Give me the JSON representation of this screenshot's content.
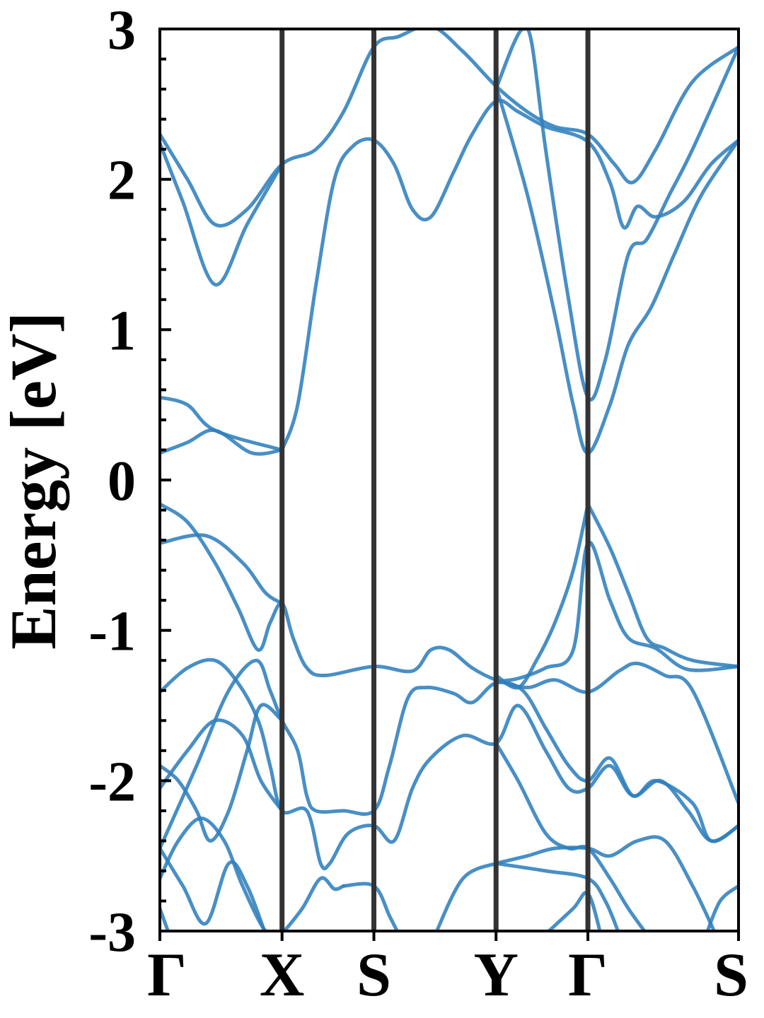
{
  "chart_data": {
    "type": "line",
    "ylabel": "Energy [eV]",
    "ylim": [
      -3,
      3
    ],
    "yticks": [
      {
        "value": 3,
        "label": "3"
      },
      {
        "value": 2,
        "label": "2"
      },
      {
        "value": 1,
        "label": "1"
      },
      {
        "value": 0,
        "label": "0"
      },
      {
        "value": -1,
        "label": "-1"
      },
      {
        "value": -2,
        "label": "-2"
      },
      {
        "value": -3,
        "label": "-3"
      }
    ],
    "kpath": {
      "range": [
        0,
        6.3
      ],
      "points": [
        {
          "label": "Γ",
          "k": 0
        },
        {
          "label": "X",
          "k": 1.33
        },
        {
          "label": "S",
          "k": 2.33
        },
        {
          "label": "Y",
          "k": 3.66
        },
        {
          "label": "Γ",
          "k": 4.66
        },
        {
          "label": "S",
          "k": 6.3
        }
      ]
    },
    "grid": false,
    "band_color": "#2f7fbd",
    "kline_color": "#333333",
    "series": [
      {
        "points": [
          [
            0,
            2.3
          ],
          [
            0.3,
            2.0
          ],
          [
            0.6,
            1.7
          ],
          [
            0.95,
            1.8
          ],
          [
            1.33,
            2.1
          ],
          [
            1.7,
            2.2
          ],
          [
            2.0,
            2.45
          ],
          [
            2.33,
            2.88
          ],
          [
            2.6,
            2.95
          ],
          [
            2.95,
            3.02
          ],
          [
            3.3,
            2.85
          ],
          [
            3.66,
            2.62
          ],
          [
            4.0,
            2.45
          ],
          [
            4.3,
            2.35
          ],
          [
            4.66,
            2.3
          ],
          [
            4.95,
            2.1
          ],
          [
            5.15,
            1.98
          ],
          [
            5.4,
            2.2
          ],
          [
            5.8,
            2.65
          ],
          [
            6.3,
            2.88
          ]
        ]
      },
      {
        "points": [
          [
            0,
            2.24
          ],
          [
            0.25,
            1.85
          ],
          [
            0.6,
            1.3
          ],
          [
            0.95,
            1.7
          ],
          [
            1.33,
            2.1
          ]
        ]
      },
      {
        "points": [
          [
            1.33,
            0.2
          ],
          [
            1.5,
            0.5
          ],
          [
            1.7,
            1.3
          ],
          [
            1.9,
            2.0
          ],
          [
            2.1,
            2.22
          ],
          [
            2.33,
            2.26
          ],
          [
            2.55,
            2.1
          ],
          [
            2.75,
            1.8
          ],
          [
            2.95,
            1.75
          ],
          [
            3.2,
            2.05
          ],
          [
            3.4,
            2.3
          ],
          [
            3.66,
            2.52
          ],
          [
            3.9,
            2.45
          ],
          [
            4.2,
            2.35
          ],
          [
            4.66,
            2.25
          ],
          [
            4.9,
            1.98
          ],
          [
            5.05,
            1.68
          ],
          [
            5.2,
            1.82
          ],
          [
            5.4,
            1.75
          ],
          [
            5.7,
            1.85
          ],
          [
            6.0,
            2.1
          ],
          [
            6.3,
            2.26
          ]
        ]
      },
      {
        "points": [
          [
            3.66,
            2.6
          ],
          [
            3.85,
            2.9
          ],
          [
            3.96,
            3.0
          ],
          [
            4.05,
            2.9
          ],
          [
            4.2,
            2.2
          ],
          [
            4.45,
            1.2
          ],
          [
            4.66,
            0.55
          ],
          [
            4.85,
            0.8
          ],
          [
            5.1,
            1.5
          ],
          [
            5.3,
            1.6
          ],
          [
            5.55,
            1.9
          ],
          [
            5.8,
            2.2
          ],
          [
            6.3,
            2.88
          ]
        ]
      },
      {
        "points": [
          [
            3.66,
            2.62
          ],
          [
            4.0,
            1.9
          ],
          [
            4.3,
            1.1
          ],
          [
            4.5,
            0.5
          ],
          [
            4.66,
            0.18
          ],
          [
            4.9,
            0.5
          ],
          [
            5.1,
            0.9
          ],
          [
            5.35,
            1.15
          ],
          [
            5.6,
            1.5
          ],
          [
            5.9,
            1.9
          ],
          [
            6.3,
            2.26
          ]
        ]
      },
      {
        "points": [
          [
            0,
            0.55
          ],
          [
            0.3,
            0.5
          ],
          [
            0.6,
            0.33
          ],
          [
            1.33,
            0.2
          ]
        ]
      },
      {
        "points": [
          [
            0,
            0.18
          ],
          [
            0.3,
            0.25
          ],
          [
            0.6,
            0.33
          ],
          [
            1.0,
            0.18
          ],
          [
            1.33,
            0.2
          ]
        ]
      },
      {
        "points": [
          [
            0,
            -0.16
          ],
          [
            0.3,
            -0.28
          ],
          [
            0.6,
            -0.55
          ],
          [
            0.85,
            -0.85
          ],
          [
            1.07,
            -1.13
          ],
          [
            1.2,
            -0.95
          ],
          [
            1.33,
            -0.82
          ],
          [
            1.45,
            -1.05
          ],
          [
            1.6,
            -1.25
          ],
          [
            1.8,
            -1.3
          ],
          [
            2.33,
            -1.24
          ],
          [
            2.75,
            -1.27
          ],
          [
            2.95,
            -1.13
          ],
          [
            3.15,
            -1.13
          ],
          [
            3.4,
            -1.25
          ],
          [
            3.66,
            -1.33
          ],
          [
            4.0,
            -1.38
          ],
          [
            4.3,
            -1.33
          ],
          [
            4.66,
            -1.41
          ],
          [
            5.0,
            -1.27
          ],
          [
            5.2,
            -1.22
          ],
          [
            5.5,
            -1.3
          ],
          [
            5.8,
            -1.4
          ],
          [
            6.3,
            -2.15
          ]
        ]
      },
      {
        "points": [
          [
            0,
            -0.42
          ],
          [
            0.5,
            -0.37
          ],
          [
            0.9,
            -0.55
          ],
          [
            1.15,
            -0.75
          ],
          [
            1.33,
            -0.82
          ]
        ]
      },
      {
        "points": [
          [
            4.66,
            -0.16
          ],
          [
            4.9,
            -0.45
          ],
          [
            5.1,
            -0.75
          ],
          [
            5.3,
            -1.05
          ],
          [
            5.5,
            -1.12
          ],
          [
            5.8,
            -1.2
          ],
          [
            6.3,
            -1.24
          ]
        ]
      },
      {
        "points": [
          [
            3.66,
            -1.34
          ],
          [
            3.9,
            -1.32
          ],
          [
            4.2,
            -1.25
          ],
          [
            4.5,
            -1.13
          ],
          [
            4.66,
            -0.42
          ],
          [
            4.9,
            -0.8
          ],
          [
            5.1,
            -1.05
          ],
          [
            5.4,
            -1.12
          ],
          [
            5.75,
            -1.26
          ],
          [
            6.3,
            -1.24
          ]
        ]
      },
      {
        "points": [
          [
            3.66,
            -1.3
          ],
          [
            3.9,
            -1.38
          ],
          [
            4.1,
            -1.2
          ],
          [
            4.3,
            -0.95
          ],
          [
            4.5,
            -0.6
          ],
          [
            4.66,
            -0.16
          ]
        ]
      },
      {
        "points": [
          [
            0,
            -1.41
          ],
          [
            0.3,
            -1.25
          ],
          [
            0.6,
            -1.2
          ],
          [
            0.85,
            -1.35
          ],
          [
            1.07,
            -1.6
          ],
          [
            1.2,
            -1.9
          ],
          [
            1.33,
            -2.2
          ],
          [
            1.6,
            -2.2
          ],
          [
            1.75,
            -2.55
          ],
          [
            1.85,
            -2.55
          ],
          [
            2.05,
            -2.35
          ],
          [
            2.33,
            -2.3
          ],
          [
            2.55,
            -2.4
          ],
          [
            2.75,
            -2.05
          ],
          [
            2.95,
            -1.85
          ],
          [
            3.3,
            -1.7
          ],
          [
            3.66,
            -1.75
          ],
          [
            3.9,
            -1.5
          ],
          [
            4.2,
            -1.8
          ],
          [
            4.45,
            -2.05
          ],
          [
            4.66,
            -2.05
          ],
          [
            4.9,
            -1.9
          ],
          [
            5.15,
            -2.1
          ],
          [
            5.45,
            -2.0
          ],
          [
            5.75,
            -2.2
          ],
          [
            6.0,
            -2.4
          ],
          [
            6.3,
            -2.3
          ]
        ]
      },
      {
        "points": [
          [
            0,
            -2.05
          ],
          [
            0.3,
            -1.8
          ],
          [
            0.6,
            -1.6
          ],
          [
            0.9,
            -1.7
          ],
          [
            1.1,
            -2.0
          ],
          [
            1.33,
            -2.2
          ]
        ]
      },
      {
        "points": [
          [
            0,
            -2.45
          ],
          [
            0.4,
            -1.9
          ],
          [
            0.75,
            -1.4
          ],
          [
            1.05,
            -1.2
          ],
          [
            1.2,
            -1.4
          ],
          [
            1.33,
            -1.6
          ],
          [
            1.5,
            -1.8
          ],
          [
            1.6,
            -2.1
          ],
          [
            1.7,
            -2.2
          ],
          [
            2.0,
            -2.2
          ],
          [
            2.33,
            -2.2
          ],
          [
            2.5,
            -1.9
          ],
          [
            2.7,
            -1.45
          ],
          [
            2.9,
            -1.38
          ],
          [
            3.2,
            -1.42
          ],
          [
            3.4,
            -1.48
          ],
          [
            3.66,
            -1.35
          ],
          [
            3.95,
            -1.4
          ],
          [
            4.2,
            -1.65
          ],
          [
            4.45,
            -1.9
          ],
          [
            4.66,
            -2.0
          ],
          [
            4.9,
            -1.85
          ],
          [
            5.15,
            -2.1
          ],
          [
            5.4,
            -2.0
          ],
          [
            5.8,
            -2.15
          ],
          [
            6.0,
            -2.4
          ],
          [
            6.3,
            -2.3
          ]
        ]
      },
      {
        "points": [
          [
            0,
            -1.9
          ],
          [
            0.2,
            -2.0
          ],
          [
            0.4,
            -2.2
          ],
          [
            0.55,
            -2.4
          ],
          [
            0.75,
            -2.2
          ],
          [
            0.95,
            -1.8
          ],
          [
            1.1,
            -1.5
          ],
          [
            1.33,
            -1.6
          ]
        ]
      },
      {
        "points": [
          [
            3.66,
            -1.75
          ],
          [
            3.9,
            -2.0
          ],
          [
            4.2,
            -2.35
          ],
          [
            4.45,
            -2.45
          ],
          [
            4.66,
            -2.45
          ],
          [
            4.9,
            -2.65
          ],
          [
            5.1,
            -2.85
          ],
          [
            5.3,
            -3.02
          ]
        ]
      },
      {
        "points": [
          [
            3.66,
            -2.55
          ],
          [
            4.0,
            -2.5
          ],
          [
            4.3,
            -2.45
          ],
          [
            4.66,
            -2.45
          ],
          [
            4.9,
            -2.5
          ],
          [
            5.2,
            -2.4
          ],
          [
            5.5,
            -2.4
          ],
          [
            5.8,
            -2.7
          ],
          [
            6.05,
            -3.02
          ]
        ]
      },
      {
        "points": [
          [
            3.66,
            -2.55
          ],
          [
            4.2,
            -2.6
          ],
          [
            4.66,
            -2.65
          ],
          [
            4.85,
            -2.8
          ],
          [
            5.0,
            -3.02
          ]
        ]
      },
      {
        "points": [
          [
            3.0,
            -3.02
          ],
          [
            3.3,
            -2.65
          ],
          [
            3.66,
            -2.55
          ]
        ]
      },
      {
        "points": [
          [
            2.0,
            -2.7
          ],
          [
            2.33,
            -2.7
          ],
          [
            2.5,
            -2.9
          ],
          [
            2.6,
            -3.02
          ]
        ]
      },
      {
        "points": [
          [
            1.33,
            -3.02
          ],
          [
            1.55,
            -2.85
          ],
          [
            1.75,
            -2.65
          ],
          [
            1.9,
            -2.72
          ],
          [
            2.0,
            -2.7
          ]
        ]
      },
      {
        "points": [
          [
            0,
            -2.85
          ],
          [
            0.1,
            -3.02
          ]
        ]
      },
      {
        "points": [
          [
            0,
            -2.65
          ],
          [
            0.2,
            -2.4
          ],
          [
            0.45,
            -2.25
          ],
          [
            0.7,
            -2.4
          ],
          [
            0.9,
            -2.7
          ],
          [
            1.15,
            -3.0
          ],
          [
            1.33,
            -3.02
          ]
        ]
      },
      {
        "points": [
          [
            0,
            -2.45
          ],
          [
            0.25,
            -2.7
          ],
          [
            0.5,
            -2.95
          ],
          [
            0.75,
            -2.55
          ],
          [
            0.95,
            -2.7
          ],
          [
            1.15,
            -3.02
          ]
        ]
      },
      {
        "points": [
          [
            4.2,
            -3.02
          ],
          [
            4.5,
            -2.85
          ],
          [
            4.66,
            -2.75
          ],
          [
            4.8,
            -3.02
          ]
        ]
      },
      {
        "points": [
          [
            5.95,
            -3.02
          ],
          [
            6.1,
            -2.8
          ],
          [
            6.3,
            -2.7
          ]
        ]
      }
    ]
  }
}
